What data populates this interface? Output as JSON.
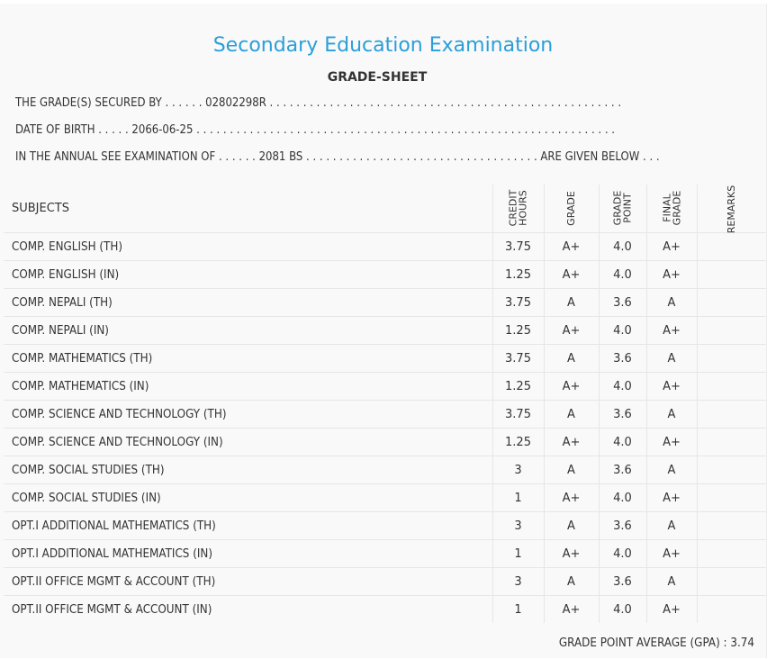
{
  "title": "Secondary Education Examination",
  "subtitle": "GRADE-SHEET",
  "info": {
    "secured_by": "THE GRADE(S) SECURED BY . . . . . . 02802298R . . . . . . . . . . . . . . . . . . . . . . . . . . . . . . . . . . . . . . . . . . . . . . . . . . . . .",
    "dob": "DATE OF BIRTH . . . . . 2066-06-25 . . . . . . . . . . . . . . . . . . . . . . . . . . . . . . . . . . . . . . . . . . . . . . . . . . . . . . . . . . . . . . .",
    "exam": "IN THE ANNUAL SEE EXAMINATION OF . . . . . . 2081 BS . . . . . . . . . . . . . . . . . . . . . . . . . . . . . . . . . . . ARE GIVEN BELOW . . ."
  },
  "headers": {
    "subjects": "SUBJECTS",
    "credit_line1": "CREDIT",
    "credit_line2": "HOURS",
    "grade": "GRADE",
    "gp_line1": "GRADE",
    "gp_line2": "POINT",
    "fg_line1": "FINAL",
    "fg_line2": "GRADE",
    "remarks": "REMARKS"
  },
  "rows": [
    {
      "subject": "COMP. ENGLISH (TH)",
      "credit": "3.75",
      "grade": "A+",
      "gp": "4.0",
      "final": "A+"
    },
    {
      "subject": "COMP. ENGLISH (IN)",
      "credit": "1.25",
      "grade": "A+",
      "gp": "4.0",
      "final": "A+"
    },
    {
      "subject": "COMP. NEPALI (TH)",
      "credit": "3.75",
      "grade": "A",
      "gp": "3.6",
      "final": "A"
    },
    {
      "subject": "COMP. NEPALI (IN)",
      "credit": "1.25",
      "grade": "A+",
      "gp": "4.0",
      "final": "A+"
    },
    {
      "subject": "COMP. MATHEMATICS (TH)",
      "credit": "3.75",
      "grade": "A",
      "gp": "3.6",
      "final": "A"
    },
    {
      "subject": "COMP. MATHEMATICS (IN)",
      "credit": "1.25",
      "grade": "A+",
      "gp": "4.0",
      "final": "A+"
    },
    {
      "subject": "COMP. SCIENCE AND TECHNOLOGY (TH)",
      "credit": "3.75",
      "grade": "A",
      "gp": "3.6",
      "final": "A"
    },
    {
      "subject": "COMP. SCIENCE AND TECHNOLOGY (IN)",
      "credit": "1.25",
      "grade": "A+",
      "gp": "4.0",
      "final": "A+"
    },
    {
      "subject": "COMP. SOCIAL STUDIES (TH)",
      "credit": "3",
      "grade": "A",
      "gp": "3.6",
      "final": "A"
    },
    {
      "subject": "COMP. SOCIAL STUDIES (IN)",
      "credit": "1",
      "grade": "A+",
      "gp": "4.0",
      "final": "A+"
    },
    {
      "subject": "OPT.I ADDITIONAL MATHEMATICS (TH)",
      "credit": "3",
      "grade": "A",
      "gp": "3.6",
      "final": "A"
    },
    {
      "subject": "OPT.I ADDITIONAL MATHEMATICS (IN)",
      "credit": "1",
      "grade": "A+",
      "gp": "4.0",
      "final": "A+"
    },
    {
      "subject": "OPT.II OFFICE MGMT & ACCOUNT (TH)",
      "credit": "3",
      "grade": "A",
      "gp": "3.6",
      "final": "A"
    },
    {
      "subject": "OPT.II OFFICE MGMT & ACCOUNT (IN)",
      "credit": "1",
      "grade": "A+",
      "gp": "4.0",
      "final": "A+"
    }
  ],
  "gpa": "GRADE POINT AVERAGE (GPA) : 3.74"
}
